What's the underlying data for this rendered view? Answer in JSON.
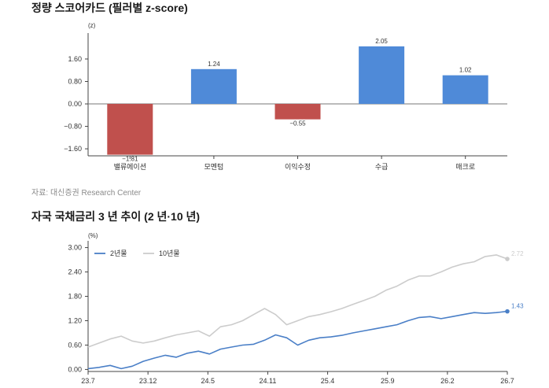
{
  "titles": {
    "chart1": "정량 스코어카드 (필러별 z-score)",
    "chart2": "자국 국채금리 3 년 추이 (2 년·10 년)",
    "source": "자료: 대신증권 Research Center"
  },
  "colors": {
    "bar_positive": "#4f8ad8",
    "bar_negative": "#c0504d",
    "line_2y": "#4a7fc7",
    "line_10y": "#cccccc"
  },
  "chart_data": [
    {
      "type": "bar",
      "title": "정량 스코어카드 (필러별 z-score)",
      "unit_label": "(z)",
      "categories": [
        "밸류에이션",
        "모멘텀",
        "이익수정",
        "수급",
        "매크로"
      ],
      "values": [
        -1.81,
        1.24,
        -0.55,
        2.05,
        1.02
      ],
      "value_labels": [
        "−1.81",
        "1.24",
        "−0.55",
        "2.05",
        "1.02"
      ],
      "yticks": [
        1.6,
        0.8,
        0.0,
        -0.8,
        -1.6
      ],
      "ytick_labels": [
        "1.60",
        "0.80",
        "0.00",
        "−0.80",
        "−1.60"
      ],
      "ylim": [
        -1.85,
        2.3
      ],
      "grid": false
    },
    {
      "type": "line",
      "title": "자국 국채금리 3 년 추이 (2 년·10 년)",
      "unit_label": "(%)",
      "xticks": [
        "23.7",
        "23.12",
        "24.5",
        "24.11",
        "25.4",
        "25.9",
        "26.2",
        "26.7"
      ],
      "yticks": [
        3.0,
        2.4,
        1.8,
        1.2,
        0.6,
        0.0
      ],
      "ytick_labels": [
        "3.00",
        "2.40",
        "1.80",
        "1.20",
        "0.60",
        "0.00"
      ],
      "ylim": [
        -0.05,
        3.05
      ],
      "legend": "top-left",
      "grid": false,
      "series": [
        {
          "name": "2년물",
          "end_label": "1.43",
          "points": [
            [
              0,
              0.02
            ],
            [
              2,
              0.05
            ],
            [
              4,
              0.1
            ],
            [
              6,
              0.02
            ],
            [
              8,
              0.08
            ],
            [
              10,
              0.2
            ],
            [
              12,
              0.28
            ],
            [
              14,
              0.35
            ],
            [
              16,
              0.3
            ],
            [
              18,
              0.4
            ],
            [
              20,
              0.45
            ],
            [
              22,
              0.38
            ],
            [
              24,
              0.5
            ],
            [
              26,
              0.55
            ],
            [
              28,
              0.6
            ],
            [
              30,
              0.62
            ],
            [
              32,
              0.72
            ],
            [
              34,
              0.85
            ],
            [
              36,
              0.78
            ],
            [
              38,
              0.6
            ],
            [
              40,
              0.72
            ],
            [
              42,
              0.78
            ],
            [
              44,
              0.8
            ],
            [
              46,
              0.84
            ],
            [
              48,
              0.9
            ],
            [
              50,
              0.95
            ],
            [
              52,
              1.0
            ],
            [
              54,
              1.05
            ],
            [
              56,
              1.1
            ],
            [
              58,
              1.2
            ],
            [
              60,
              1.28
            ],
            [
              62,
              1.3
            ],
            [
              64,
              1.25
            ],
            [
              66,
              1.3
            ],
            [
              68,
              1.35
            ],
            [
              70,
              1.4
            ],
            [
              72,
              1.38
            ],
            [
              74,
              1.4
            ],
            [
              76,
              1.43
            ]
          ]
        },
        {
          "name": "10년물",
          "end_label": "2.72",
          "points": [
            [
              0,
              0.55
            ],
            [
              2,
              0.65
            ],
            [
              4,
              0.75
            ],
            [
              6,
              0.82
            ],
            [
              8,
              0.7
            ],
            [
              10,
              0.65
            ],
            [
              12,
              0.7
            ],
            [
              14,
              0.78
            ],
            [
              16,
              0.85
            ],
            [
              18,
              0.9
            ],
            [
              20,
              0.95
            ],
            [
              22,
              0.82
            ],
            [
              24,
              1.05
            ],
            [
              26,
              1.1
            ],
            [
              28,
              1.2
            ],
            [
              30,
              1.35
            ],
            [
              32,
              1.5
            ],
            [
              34,
              1.35
            ],
            [
              36,
              1.1
            ],
            [
              38,
              1.2
            ],
            [
              40,
              1.3
            ],
            [
              42,
              1.35
            ],
            [
              44,
              1.42
            ],
            [
              46,
              1.5
            ],
            [
              48,
              1.6
            ],
            [
              50,
              1.7
            ],
            [
              52,
              1.8
            ],
            [
              54,
              1.95
            ],
            [
              56,
              2.05
            ],
            [
              58,
              2.2
            ],
            [
              60,
              2.3
            ],
            [
              62,
              2.3
            ],
            [
              64,
              2.4
            ],
            [
              66,
              2.52
            ],
            [
              68,
              2.6
            ],
            [
              70,
              2.65
            ],
            [
              72,
              2.78
            ],
            [
              74,
              2.82
            ],
            [
              76,
              2.72
            ]
          ]
        }
      ]
    }
  ]
}
